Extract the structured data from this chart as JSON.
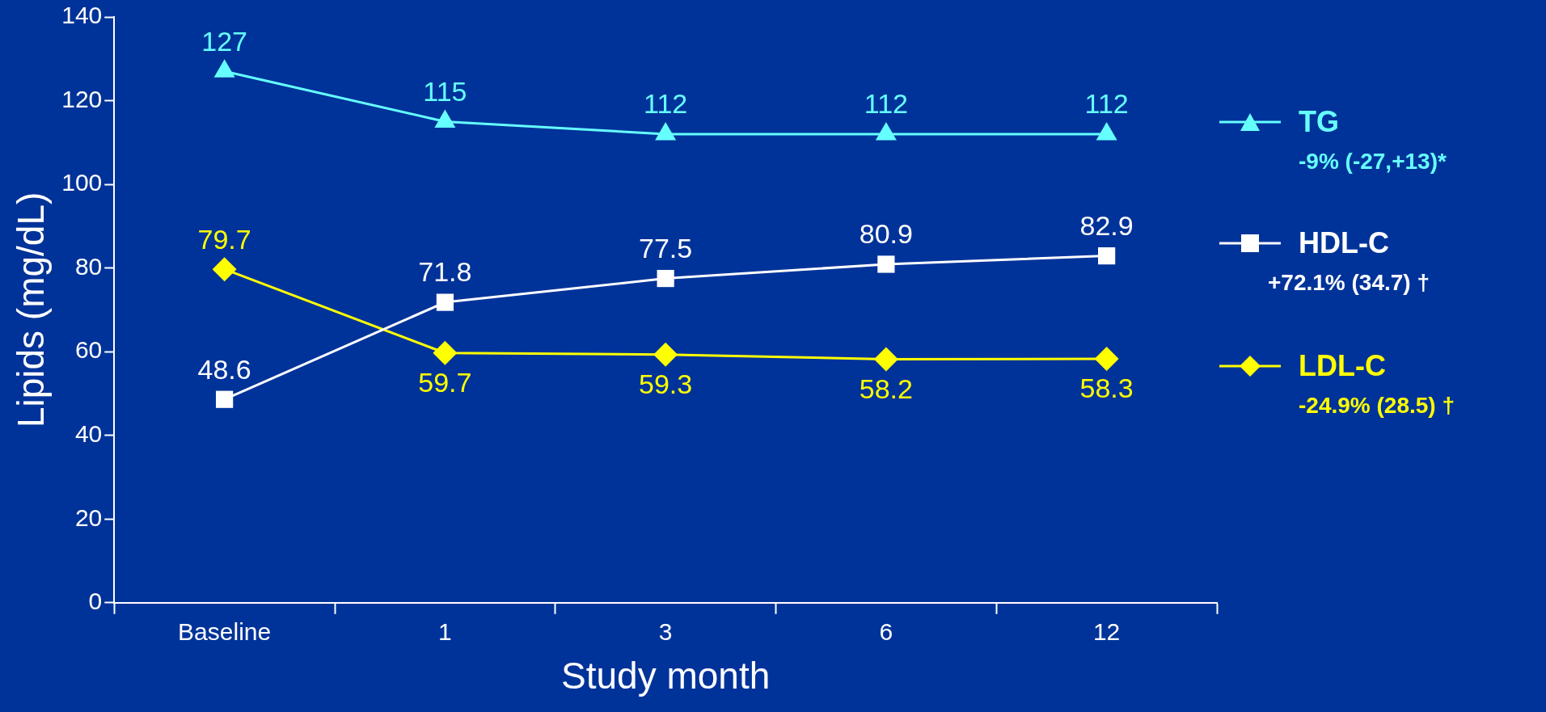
{
  "chart_data": {
    "type": "line",
    "xlabel": "Study month",
    "ylabel": "Lipids (mg/dL)",
    "categories": [
      "Baseline",
      "1",
      "3",
      "6",
      "12"
    ],
    "ylim": [
      0,
      140
    ],
    "yticks": [
      0,
      20,
      40,
      60,
      80,
      100,
      120,
      140
    ],
    "grid": false,
    "legend": "right",
    "data_labels": true,
    "series": [
      {
        "name": "TG",
        "color": "#66ffff",
        "marker": "triangle",
        "values": [
          127,
          115,
          112,
          112,
          112
        ]
      },
      {
        "name": "HDL-C",
        "color": "#ffffff",
        "marker": "square",
        "values": [
          48.6,
          71.8,
          77.5,
          80.9,
          82.9
        ]
      },
      {
        "name": "LDL-C",
        "color": "#ffff00",
        "marker": "diamond",
        "values": [
          79.7,
          59.7,
          59.3,
          58.2,
          58.3
        ]
      }
    ],
    "annotations": [
      "-9% (-27,+13)*",
      "+72.1% (34.7) †",
      "-24.9% (28.5) †"
    ]
  }
}
